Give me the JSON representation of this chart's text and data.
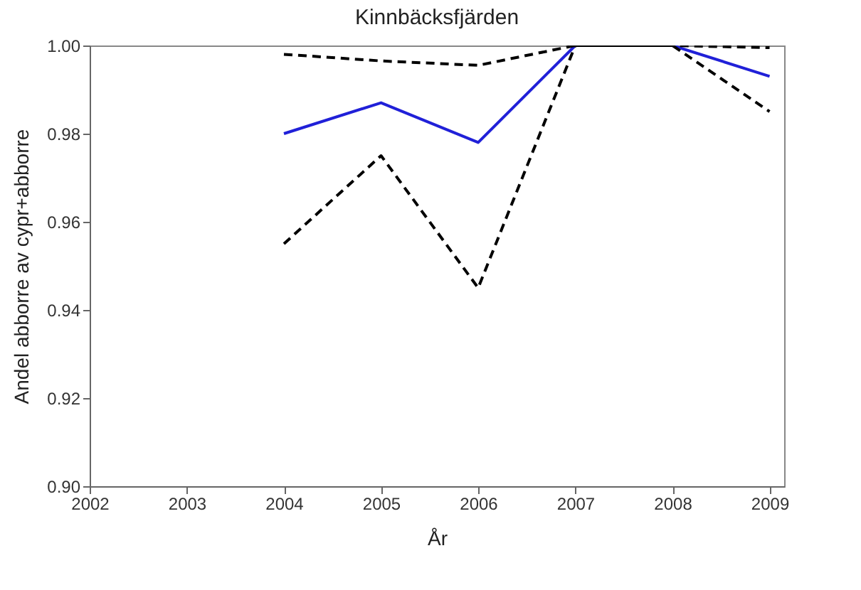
{
  "chart_data": {
    "type": "line",
    "title": "Kinnbäcksfjärden",
    "xlabel": "År",
    "ylabel": "Andel abborre av cypr+abborre",
    "x": [
      2004,
      2005,
      2006,
      2007,
      2008,
      2009
    ],
    "series": [
      {
        "color": "#2020d8",
        "line_style": "solid",
        "values": [
          0.98,
          0.987,
          0.978,
          1.0,
          1.0,
          0.993
        ]
      },
      {
        "color": "#000000",
        "line_style": "dashed",
        "values": [
          0.998,
          0.9965,
          0.9955,
          1.0,
          1.0,
          0.9995
        ]
      },
      {
        "color": "#000000",
        "line_style": "dashed",
        "values": [
          0.955,
          0.975,
          0.945,
          1.0,
          1.0,
          0.985
        ]
      }
    ],
    "xlim": [
      2002,
      2009.15
    ],
    "xticks": [
      2002,
      2003,
      2004,
      2005,
      2006,
      2007,
      2008,
      2009
    ],
    "ylim": [
      0.9,
      1.0
    ],
    "yticks": [
      {
        "value": 0.9,
        "label": "0.90"
      },
      {
        "value": 0.92,
        "label": "0.92"
      },
      {
        "value": 0.94,
        "label": "0.94"
      },
      {
        "value": 0.96,
        "label": "0.96"
      },
      {
        "value": 0.98,
        "label": "0.98"
      },
      {
        "value": 1.0,
        "label": "1.00"
      }
    ],
    "grid": false,
    "marker": "none"
  }
}
